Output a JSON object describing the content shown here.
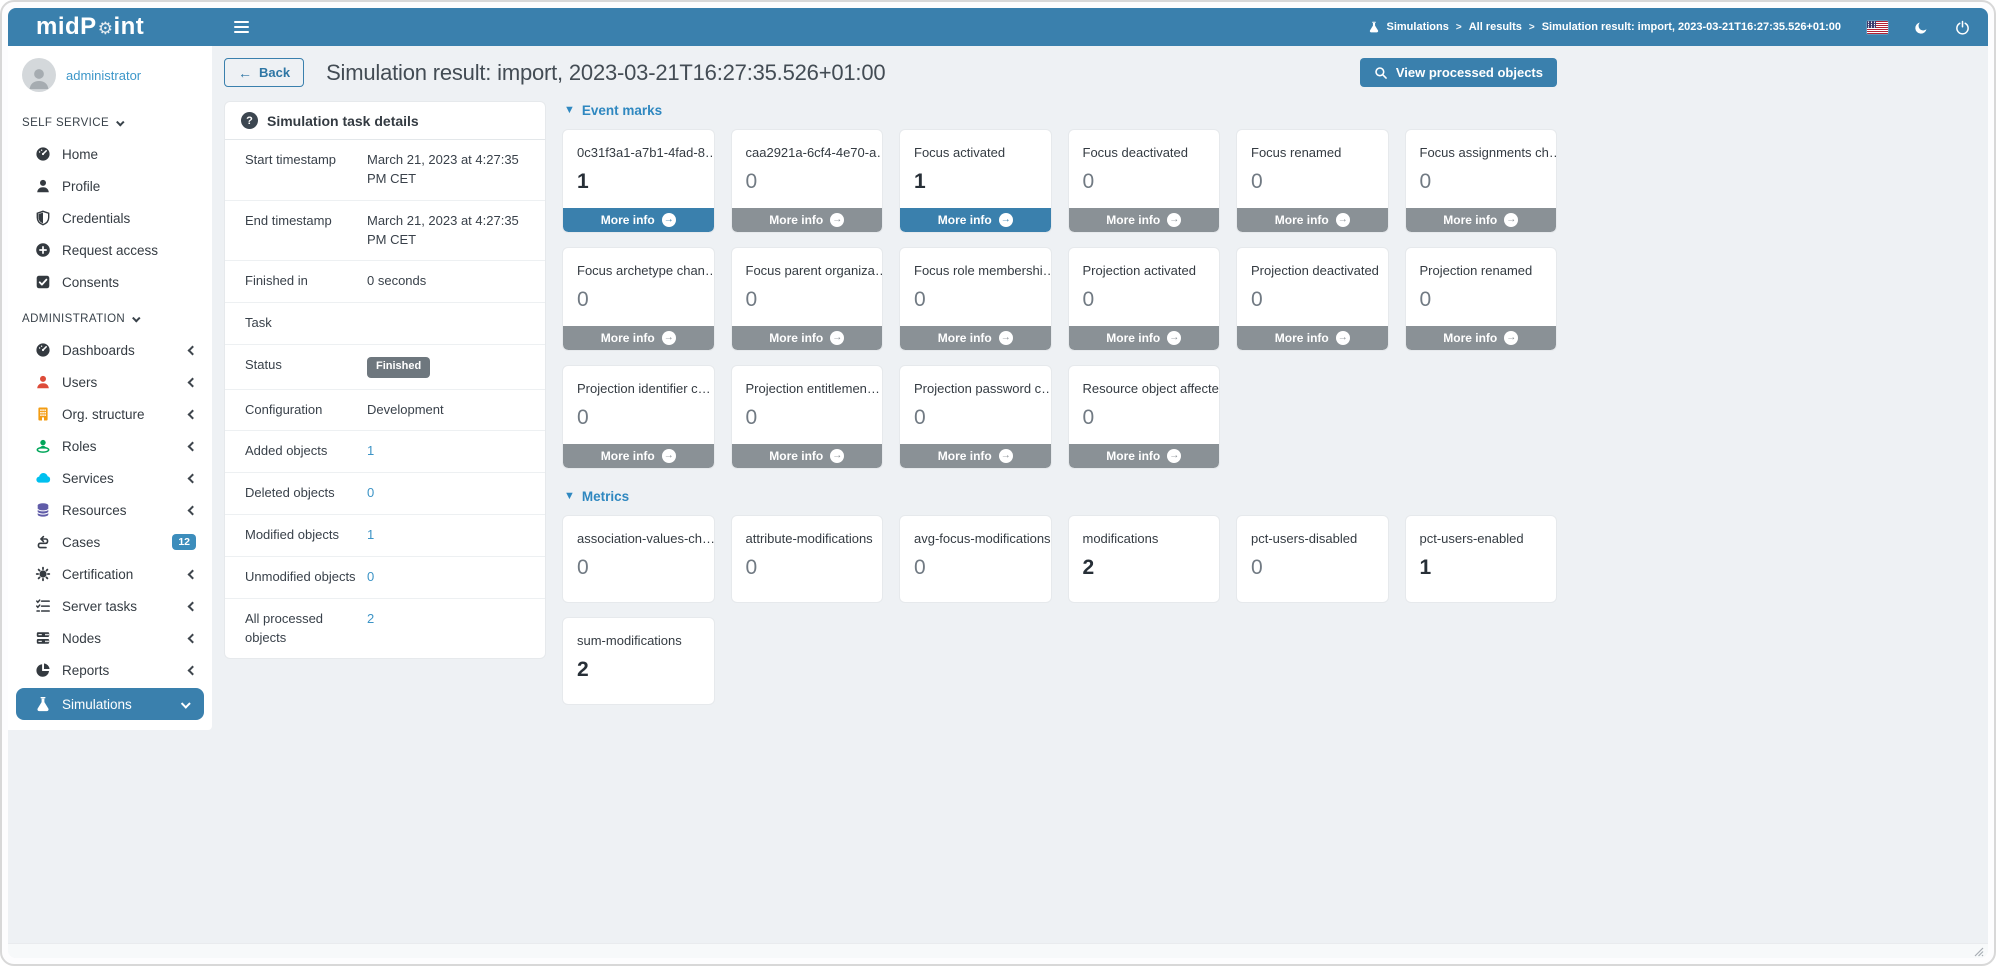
{
  "colors": {
    "primary": "#3a80ad",
    "link": "#3d94c6",
    "gray_button": "#8a9196",
    "badge_gray": "#6e777e",
    "cases_badge_blue": "#3c8dbc"
  },
  "navbar": {
    "brand_prefix": "midP",
    "brand_suffix": "int",
    "breadcrumb_items": [
      "Simulations",
      "All results",
      "Simulation result: import, 2023-03-21T16:27:35.526+01:00"
    ]
  },
  "sidebar": {
    "user": {
      "name": "administrator"
    },
    "sections": [
      {
        "label": "SELF SERVICE",
        "items": [
          {
            "label": "Home",
            "icon": "gauge",
            "color": "#343a40"
          },
          {
            "label": "Profile",
            "icon": "user",
            "color": "#343a40"
          },
          {
            "label": "Credentials",
            "icon": "shield",
            "color": "#343a40"
          },
          {
            "label": "Request access",
            "icon": "plus-circle",
            "color": "#343a40"
          },
          {
            "label": "Consents",
            "icon": "check-square",
            "color": "#343a40"
          }
        ]
      },
      {
        "label": "ADMINISTRATION",
        "items": [
          {
            "label": "Dashboards",
            "icon": "gauge",
            "color": "#343a40",
            "expandable": true
          },
          {
            "label": "Users",
            "icon": "user",
            "color": "#dd4b39",
            "expandable": true
          },
          {
            "label": "Org. structure",
            "icon": "building",
            "color": "#f39c12",
            "expandable": true
          },
          {
            "label": "Roles",
            "icon": "role",
            "color": "#00a65a",
            "expandable": true
          },
          {
            "label": "Services",
            "icon": "cloud",
            "color": "#00c0ef",
            "expandable": true
          },
          {
            "label": "Resources",
            "icon": "database",
            "color": "#605ca8",
            "expandable": true
          },
          {
            "label": "Cases",
            "icon": "route",
            "color": "#343a40",
            "badge": "12"
          },
          {
            "label": "Certification",
            "icon": "cert",
            "color": "#343a40",
            "expandable": true
          },
          {
            "label": "Server tasks",
            "icon": "tasks",
            "color": "#343a40",
            "expandable": true
          },
          {
            "label": "Nodes",
            "icon": "server",
            "color": "#343a40",
            "expandable": true
          },
          {
            "label": "Reports",
            "icon": "pie",
            "color": "#343a40",
            "expandable": true
          },
          {
            "label": "Simulations",
            "icon": "flask",
            "color": "#ffffff",
            "active": true,
            "expanded": true
          }
        ]
      }
    ]
  },
  "page": {
    "back_label": "Back",
    "title": "Simulation result: import, 2023-03-21T16:27:35.526+01:00",
    "view_button_label": "View processed objects"
  },
  "details": {
    "title": "Simulation task details",
    "rows": [
      {
        "label": "Start timestamp",
        "value": "March 21, 2023 at 4:27:35 PM CET",
        "type": "text"
      },
      {
        "label": "End timestamp",
        "value": "March 21, 2023 at 4:27:35 PM CET",
        "type": "text"
      },
      {
        "label": "Finished in",
        "value": "0 seconds",
        "type": "text"
      },
      {
        "label": "Task",
        "value": "",
        "type": "text"
      },
      {
        "label": "Status",
        "value": "Finished",
        "type": "badge"
      },
      {
        "label": "Configuration",
        "value": "Development",
        "type": "text"
      },
      {
        "label": "Added objects",
        "value": "1",
        "type": "link"
      },
      {
        "label": "Deleted objects",
        "value": "0",
        "type": "link"
      },
      {
        "label": "Modified objects",
        "value": "1",
        "type": "link"
      },
      {
        "label": "Unmodified objects",
        "value": "0",
        "type": "link"
      },
      {
        "label": "All processed objects",
        "value": "2",
        "type": "link"
      }
    ]
  },
  "event_marks": {
    "title": "Event marks",
    "more_info_label": "More info",
    "cards": [
      {
        "title": "0c31f3a1-a7b1-4fad-8…",
        "value": "1"
      },
      {
        "title": "caa2921a-6cf4-4e70-a…",
        "value": "0"
      },
      {
        "title": "Focus activated",
        "value": "1"
      },
      {
        "title": "Focus deactivated",
        "value": "0"
      },
      {
        "title": "Focus renamed",
        "value": "0"
      },
      {
        "title": "Focus assignments ch…",
        "value": "0"
      },
      {
        "title": "Focus archetype chan…",
        "value": "0"
      },
      {
        "title": "Focus parent organiza…",
        "value": "0"
      },
      {
        "title": "Focus role membershi…",
        "value": "0"
      },
      {
        "title": "Projection activated",
        "value": "0"
      },
      {
        "title": "Projection deactivated",
        "value": "0"
      },
      {
        "title": "Projection renamed",
        "value": "0"
      },
      {
        "title": "Projection identifier c…",
        "value": "0"
      },
      {
        "title": "Projection entitlemen…",
        "value": "0"
      },
      {
        "title": "Projection password c…",
        "value": "0"
      },
      {
        "title": "Resource object affected",
        "value": "0"
      }
    ]
  },
  "metrics": {
    "title": "Metrics",
    "cards": [
      {
        "title": "association-values-ch…",
        "value": "0"
      },
      {
        "title": "attribute-modifications",
        "value": "0"
      },
      {
        "title": "avg-focus-modifications",
        "value": "0"
      },
      {
        "title": "modifications",
        "value": "2"
      },
      {
        "title": "pct-users-disabled",
        "value": "0"
      },
      {
        "title": "pct-users-enabled",
        "value": "1"
      },
      {
        "title": "sum-modifications",
        "value": "2"
      }
    ]
  }
}
